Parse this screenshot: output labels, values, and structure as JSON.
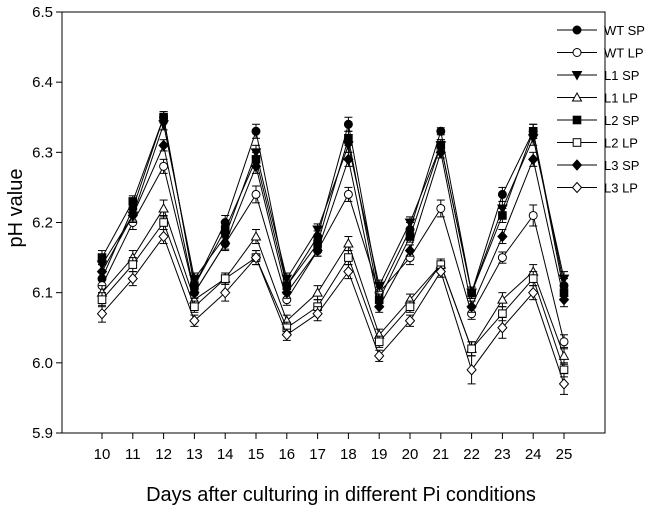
{
  "chart_data": {
    "type": "line",
    "xlabel": "Days after culturing in different Pi conditions",
    "ylabel": "pH value",
    "ylim": [
      5.9,
      6.5
    ],
    "yticks": [
      "5.9",
      "6.0",
      "6.1",
      "6.2",
      "6.3",
      "6.4",
      "6.5"
    ],
    "categories": [
      "10",
      "11",
      "12",
      "13",
      "14",
      "15",
      "16",
      "17",
      "18",
      "19",
      "20",
      "21",
      "22",
      "23",
      "24",
      "25"
    ],
    "grid": false,
    "legend_position": "top-right",
    "error_bars": true,
    "series": [
      {
        "name": "WT SP",
        "marker": "circle",
        "fill": "filled",
        "values": [
          6.12,
          6.22,
          6.35,
          6.11,
          6.2,
          6.33,
          6.11,
          6.18,
          6.34,
          6.1,
          6.19,
          6.33,
          6.1,
          6.24,
          6.33,
          6.11
        ],
        "errors": [
          0.01,
          0.01,
          0.008,
          0.008,
          0.01,
          0.01,
          0.008,
          0.008,
          0.01,
          0.008,
          0.01,
          0.005,
          0.008,
          0.01,
          0.01,
          0.01
        ]
      },
      {
        "name": "WT LP",
        "marker": "circle",
        "fill": "open",
        "values": [
          6.11,
          6.2,
          6.28,
          6.1,
          6.17,
          6.24,
          6.09,
          6.16,
          6.24,
          6.1,
          6.15,
          6.22,
          6.07,
          6.15,
          6.21,
          6.03
        ],
        "errors": [
          0.01,
          0.01,
          0.01,
          0.008,
          0.01,
          0.012,
          0.008,
          0.008,
          0.01,
          0.008,
          0.01,
          0.012,
          0.008,
          0.008,
          0.015,
          0.01
        ]
      },
      {
        "name": "L1 SP",
        "marker": "triangle-down",
        "fill": "filled",
        "values": [
          6.14,
          6.21,
          6.34,
          6.12,
          6.18,
          6.3,
          6.12,
          6.19,
          6.31,
          6.11,
          6.2,
          6.31,
          6.1,
          6.22,
          6.32,
          6.12
        ],
        "errors": [
          0.01,
          0.01,
          0.008,
          0.008,
          0.008,
          0.01,
          0.008,
          0.008,
          0.01,
          0.008,
          0.008,
          0.008,
          0.008,
          0.01,
          0.01,
          0.01
        ]
      },
      {
        "name": "L1 LP",
        "marker": "triangle-up",
        "fill": "open",
        "values": [
          6.1,
          6.15,
          6.22,
          6.09,
          6.12,
          6.18,
          6.06,
          6.1,
          6.17,
          6.04,
          6.09,
          6.14,
          6.02,
          6.09,
          6.13,
          6.01
        ],
        "errors": [
          0.01,
          0.01,
          0.012,
          0.008,
          0.008,
          0.01,
          0.008,
          0.01,
          0.01,
          0.008,
          0.008,
          0.008,
          0.01,
          0.01,
          0.01,
          0.012
        ]
      },
      {
        "name": "L2 SP",
        "marker": "square",
        "fill": "filled",
        "values": [
          6.15,
          6.23,
          6.35,
          6.11,
          6.19,
          6.29,
          6.11,
          6.17,
          6.32,
          6.09,
          6.18,
          6.31,
          6.1,
          6.21,
          6.33,
          6.1
        ],
        "errors": [
          0.01,
          0.008,
          0.008,
          0.008,
          0.008,
          0.01,
          0.008,
          0.008,
          0.01,
          0.008,
          0.008,
          0.008,
          0.008,
          0.01,
          0.01,
          0.01
        ]
      },
      {
        "name": "L2 LP",
        "marker": "square",
        "fill": "open",
        "values": [
          6.09,
          6.14,
          6.2,
          6.08,
          6.12,
          6.15,
          6.05,
          6.08,
          6.15,
          6.03,
          6.08,
          6.14,
          6.02,
          6.07,
          6.12,
          5.99
        ],
        "errors": [
          0.01,
          0.01,
          0.01,
          0.008,
          0.008,
          0.01,
          0.008,
          0.01,
          0.01,
          0.008,
          0.008,
          0.008,
          0.01,
          0.01,
          0.01,
          0.01
        ]
      },
      {
        "name": "L3 SP",
        "marker": "diamond",
        "fill": "filled",
        "values": [
          6.13,
          6.21,
          6.31,
          6.1,
          6.17,
          6.28,
          6.1,
          6.16,
          6.29,
          6.08,
          6.16,
          6.3,
          6.08,
          6.18,
          6.29,
          6.09
        ],
        "errors": [
          0.01,
          0.008,
          0.008,
          0.008,
          0.008,
          0.01,
          0.008,
          0.008,
          0.01,
          0.008,
          0.008,
          0.008,
          0.008,
          0.01,
          0.01,
          0.01
        ]
      },
      {
        "name": "L3 LP",
        "marker": "diamond",
        "fill": "open",
        "values": [
          6.07,
          6.12,
          6.18,
          6.06,
          6.1,
          6.15,
          6.04,
          6.07,
          6.13,
          6.01,
          6.06,
          6.13,
          5.99,
          6.05,
          6.1,
          5.97
        ],
        "errors": [
          0.012,
          0.01,
          0.01,
          0.008,
          0.012,
          0.01,
          0.008,
          0.01,
          0.01,
          0.008,
          0.008,
          0.008,
          0.02,
          0.015,
          0.01,
          0.015
        ]
      }
    ]
  }
}
